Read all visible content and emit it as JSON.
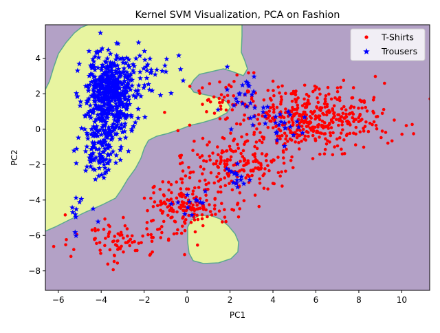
{
  "chart_data": {
    "type": "scatter",
    "title": "Kernel SVM Visualization, PCA on Fashion",
    "xlabel": "PC1",
    "ylabel": "PC2",
    "xlim": [
      -6.6,
      11.3
    ],
    "ylim": [
      -9.1,
      5.9
    ],
    "xticks": [
      -6,
      -4,
      -2,
      0,
      2,
      4,
      6,
      8,
      10
    ],
    "yticks": [
      -8,
      -6,
      -4,
      -2,
      0,
      2,
      4
    ],
    "xtick_labels": [
      "−6",
      "−4",
      "−2",
      "0",
      "2",
      "4",
      "6",
      "8",
      "10"
    ],
    "ytick_labels": [
      "−8",
      "−6",
      "−4",
      "−2",
      "0",
      "2",
      "4"
    ],
    "grid": false,
    "legend_position": "top-right",
    "background_regions": {
      "purple_region_color": "#b3a1c6",
      "yellow_region_color": "#e8f4a0",
      "boundary_color": "#5aa88f"
    },
    "series": [
      {
        "name": "T-Shirts",
        "marker": "dot",
        "color": "#ff0000",
        "clusters": [
          {
            "center": [
              6.0,
              0.6
            ],
            "spread": [
              1.5,
              0.9
            ],
            "count": 420
          },
          {
            "center": [
              2.5,
              -1.9
            ],
            "spread": [
              1.2,
              0.9
            ],
            "count": 200
          },
          {
            "center": [
              0.0,
              -4.2
            ],
            "spread": [
              1.1,
              0.7
            ],
            "count": 170
          },
          {
            "center": [
              -3.0,
              -6.2
            ],
            "spread": [
              1.2,
              0.6
            ],
            "count": 90
          },
          {
            "center": [
              2.0,
              1.6
            ],
            "spread": [
              0.8,
              0.8
            ],
            "count": 50
          }
        ]
      },
      {
        "name": "Trousers",
        "marker": "star",
        "color": "#0000ff",
        "clusters": [
          {
            "center": [
              -3.6,
              1.9
            ],
            "spread": [
              0.55,
              1.2
            ],
            "count": 560
          },
          {
            "center": [
              -4.0,
              -1.3
            ],
            "spread": [
              0.5,
              0.8
            ],
            "count": 90
          },
          {
            "center": [
              -1.8,
              3.2
            ],
            "spread": [
              0.6,
              0.7
            ],
            "count": 40
          },
          {
            "center": [
              2.4,
              1.9
            ],
            "spread": [
              0.6,
              0.7
            ],
            "count": 25
          },
          {
            "center": [
              4.3,
              0.2
            ],
            "spread": [
              0.6,
              0.6
            ],
            "count": 25
          },
          {
            "center": [
              2.3,
              -2.6
            ],
            "spread": [
              0.4,
              0.5
            ],
            "count": 15
          },
          {
            "center": [
              0.2,
              -4.2
            ],
            "spread": [
              0.5,
              0.5
            ],
            "count": 12
          },
          {
            "center": [
              -5.0,
              -4.8
            ],
            "spread": [
              0.4,
              0.7
            ],
            "count": 12
          }
        ]
      }
    ]
  }
}
